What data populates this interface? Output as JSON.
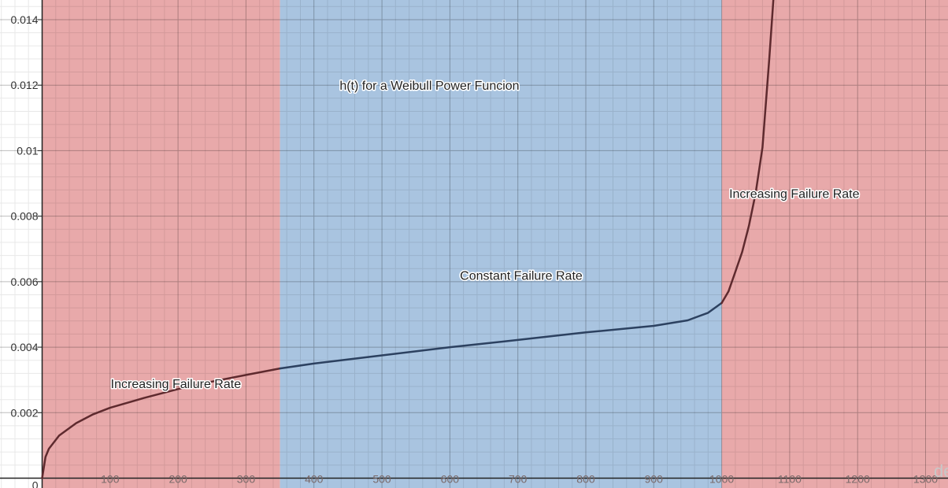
{
  "chart_data": {
    "type": "line",
    "title": "h(t) for a Weibull Power Funcion",
    "xlabel": "",
    "ylabel": "",
    "xlim": [
      -62,
      1333
    ],
    "ylim": [
      -0.0003,
      0.0146
    ],
    "grid": true,
    "x_ticks": [
      100,
      200,
      300,
      400,
      500,
      600,
      700,
      800,
      900,
      1000,
      1100,
      1200,
      1300
    ],
    "y_ticks": [
      0.002,
      0.004,
      0.006,
      0.008,
      0.01,
      0.012,
      0.014
    ],
    "y_tick_labels": [
      "0.002",
      "0.004",
      "0.006",
      "0.008",
      "0.01",
      "0.012",
      "0.014"
    ],
    "origin_label": "0",
    "regions": [
      {
        "name": "Increasing Failure Rate",
        "x_start": 0,
        "x_end": 350,
        "color": "#e8a9aa"
      },
      {
        "name": "Constant Failure Rate",
        "x_start": 350,
        "x_end": 1000,
        "color": "#a9c4e0"
      },
      {
        "name": "Increasing Failure Rate",
        "x_start": 1000,
        "x_end": 1333,
        "color": "#e8a9aa"
      }
    ],
    "series": [
      {
        "name": "h(t)",
        "x": [
          0,
          5,
          10,
          25,
          50,
          75,
          100,
          150,
          200,
          250,
          300,
          350,
          400,
          500,
          600,
          700,
          800,
          900,
          950,
          980,
          1000,
          1010,
          1020,
          1030,
          1040,
          1050,
          1060,
          1070,
          1076
        ],
        "y": [
          0,
          0.00065,
          0.0009,
          0.0013,
          0.00168,
          0.00195,
          0.00215,
          0.00245,
          0.00272,
          0.00295,
          0.00315,
          0.00335,
          0.0035,
          0.00375,
          0.004,
          0.00422,
          0.00445,
          0.00465,
          0.00482,
          0.00505,
          0.00535,
          0.0057,
          0.0063,
          0.0069,
          0.0077,
          0.0087,
          0.0101,
          0.0128,
          0.0146
        ]
      }
    ],
    "annotations": [
      {
        "text": "h(t) for a Weibull Power Funcion",
        "x": 570,
        "y": 0.012
      },
      {
        "text": "Constant Failure Rate",
        "x": 705,
        "y": 0.0062
      },
      {
        "text": "Increasing Failure Rate",
        "x": 101,
        "y": 0.0029
      },
      {
        "text": "Increasing Failure Rate",
        "x": 1011,
        "y": 0.0087
      }
    ],
    "colors": {
      "pink_region": "#e8a9aa",
      "blue_region": "#a9c4e0",
      "curve_on_pink": "#5e2a2e",
      "curve_on_blue": "#2c4160",
      "axis": "#222222"
    },
    "watermark": "de"
  }
}
